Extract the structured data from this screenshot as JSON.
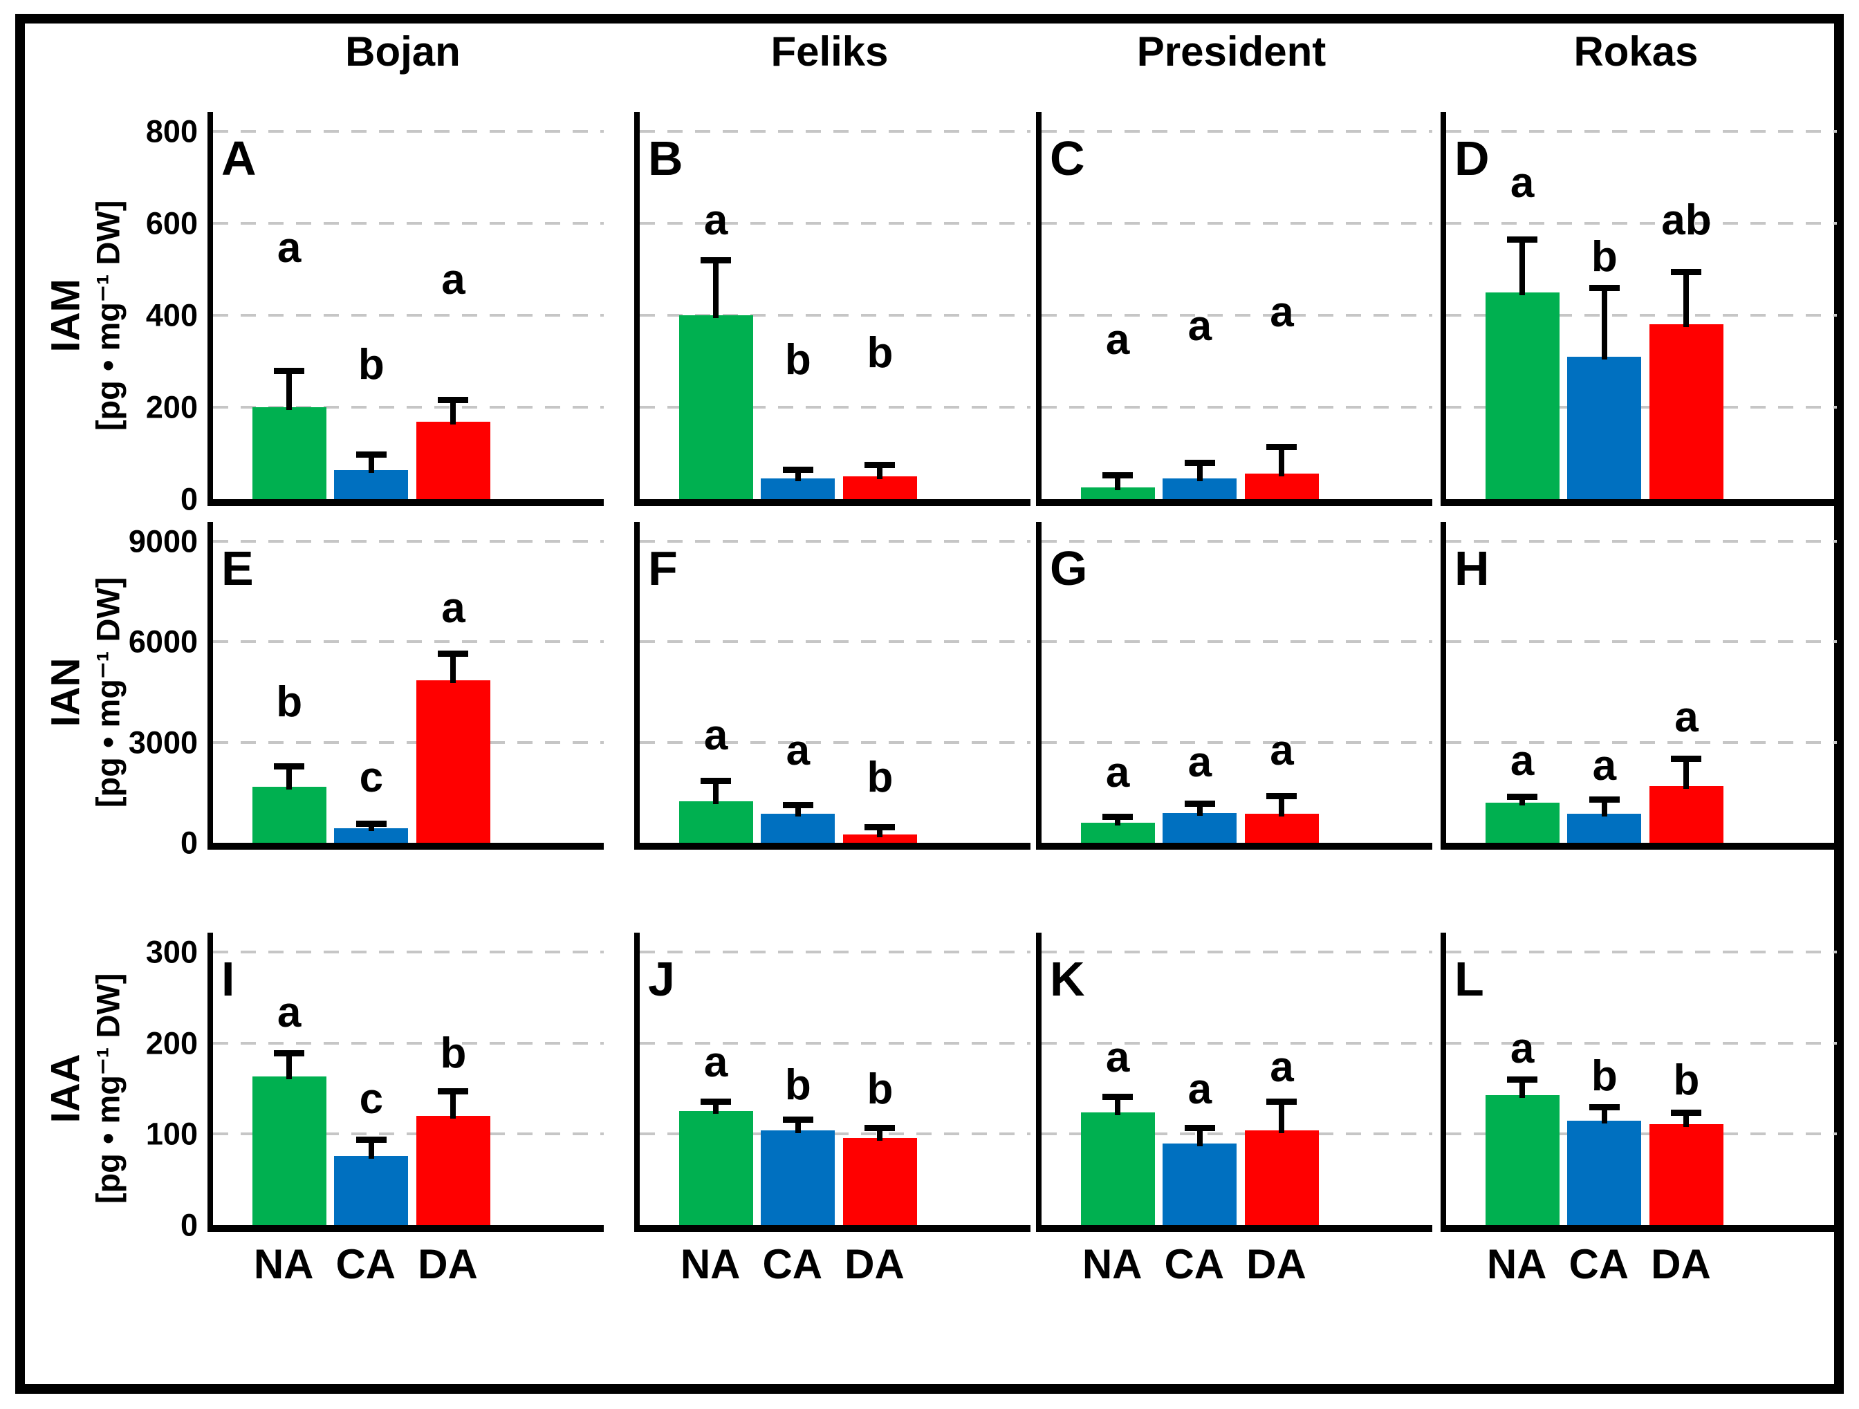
{
  "figure": {
    "column_titles": [
      "Bojan",
      "Feliks",
      "President",
      "Rokas"
    ],
    "rows": [
      {
        "label": "IAM",
        "units": "[pg • mg⁻¹ DW]"
      },
      {
        "label": "IAN",
        "units": "[pg • mg⁻¹ DW]"
      },
      {
        "label": "IAA",
        "units": "[pg • mg⁻¹ DW]"
      }
    ],
    "x_categories": [
      "NA",
      "CA",
      "DA"
    ],
    "series_colors": {
      "NA": "#00B050",
      "CA": "#0070C0",
      "DA": "#FF0000"
    },
    "gridline_color": "#c6c6c6",
    "axis_color": "#000000"
  },
  "chart_data": [
    {
      "panel": "A",
      "type": "bar",
      "row": "IAM",
      "column": "Bojan",
      "ylim": [
        0,
        800
      ],
      "yticks": [
        0,
        200,
        400,
        600,
        800
      ],
      "categories": [
        "NA",
        "CA",
        "DA"
      ],
      "values": [
        200,
        63,
        168
      ],
      "errors_up": [
        80,
        35,
        48
      ],
      "sig_letters": [
        "a",
        "b",
        "a"
      ],
      "letter_y": [
        500,
        245,
        430
      ]
    },
    {
      "panel": "B",
      "type": "bar",
      "row": "IAM",
      "column": "Feliks",
      "ylim": [
        0,
        800
      ],
      "yticks": [
        0,
        200,
        400,
        600,
        800
      ],
      "categories": [
        "NA",
        "CA",
        "DA"
      ],
      "values": [
        400,
        45,
        50
      ],
      "errors_up": [
        120,
        20,
        25
      ],
      "sig_letters": [
        "a",
        "b",
        "b"
      ],
      "letter_y": [
        560,
        255,
        270
      ]
    },
    {
      "panel": "C",
      "type": "bar",
      "row": "IAM",
      "column": "President",
      "ylim": [
        0,
        800
      ],
      "yticks": [
        0,
        200,
        400,
        600,
        800
      ],
      "categories": [
        "NA",
        "CA",
        "DA"
      ],
      "values": [
        25,
        45,
        55
      ],
      "errors_up": [
        28,
        35,
        60
      ],
      "sig_letters": [
        "a",
        "a",
        "a"
      ],
      "letter_y": [
        300,
        330,
        360
      ]
    },
    {
      "panel": "D",
      "type": "bar",
      "row": "IAM",
      "column": "Rokas",
      "ylim": [
        0,
        800
      ],
      "yticks": [
        0,
        200,
        400,
        600,
        800
      ],
      "categories": [
        "NA",
        "CA",
        "DA"
      ],
      "values": [
        450,
        310,
        380
      ],
      "errors_up": [
        115,
        150,
        115
      ],
      "sig_letters": [
        "a",
        "b",
        "ab"
      ],
      "letter_y": [
        640,
        480,
        560
      ]
    },
    {
      "panel": "E",
      "type": "bar",
      "row": "IAN",
      "column": "Bojan",
      "ylim": [
        0,
        9000
      ],
      "yticks": [
        0,
        3000,
        6000,
        9000
      ],
      "categories": [
        "NA",
        "CA",
        "DA"
      ],
      "values": [
        1670,
        430,
        4860
      ],
      "errors_up": [
        630,
        150,
        790
      ],
      "sig_letters": [
        "b",
        "c",
        "a"
      ],
      "letter_y": [
        3550,
        1300,
        6350
      ]
    },
    {
      "panel": "F",
      "type": "bar",
      "row": "IAN",
      "column": "Feliks",
      "ylim": [
        0,
        9000
      ],
      "yticks": [
        0,
        3000,
        6000,
        9000
      ],
      "categories": [
        "NA",
        "CA",
        "DA"
      ],
      "values": [
        1240,
        860,
        240
      ],
      "errors_up": [
        620,
        280,
        240
      ],
      "sig_letters": [
        "a",
        "a",
        "b"
      ],
      "letter_y": [
        2550,
        2100,
        1300
      ]
    },
    {
      "panel": "G",
      "type": "bar",
      "row": "IAN",
      "column": "President",
      "ylim": [
        0,
        9000
      ],
      "yticks": [
        0,
        3000,
        6000,
        9000
      ],
      "categories": [
        "NA",
        "CA",
        "DA"
      ],
      "values": [
        600,
        890,
        870
      ],
      "errors_up": [
        180,
        280,
        540
      ],
      "sig_letters": [
        "a",
        "a",
        "a"
      ],
      "letter_y": [
        1450,
        1750,
        2100
      ]
    },
    {
      "panel": "H",
      "type": "bar",
      "row": "IAN",
      "column": "Rokas",
      "ylim": [
        0,
        9000
      ],
      "yticks": [
        0,
        3000,
        6000,
        9000
      ],
      "categories": [
        "NA",
        "CA",
        "DA"
      ],
      "values": [
        1190,
        860,
        1700
      ],
      "errors_up": [
        190,
        450,
        810
      ],
      "sig_letters": [
        "a",
        "a",
        "a"
      ],
      "letter_y": [
        1800,
        1650,
        3100
      ]
    },
    {
      "panel": "I",
      "type": "bar",
      "row": "IAA",
      "column": "Bojan",
      "ylim": [
        0,
        300
      ],
      "yticks": [
        0,
        100,
        200,
        300
      ],
      "categories": [
        "NA",
        "CA",
        "DA"
      ],
      "values": [
        163,
        76,
        120
      ],
      "errors_up": [
        26,
        18,
        27
      ],
      "sig_letters": [
        "a",
        "c",
        "b"
      ],
      "letter_y": [
        210,
        115,
        165
      ]
    },
    {
      "panel": "J",
      "type": "bar",
      "row": "IAA",
      "column": "Feliks",
      "ylim": [
        0,
        300
      ],
      "yticks": [
        0,
        100,
        200,
        300
      ],
      "categories": [
        "NA",
        "CA",
        "DA"
      ],
      "values": [
        125,
        104,
        96
      ],
      "errors_up": [
        11,
        12,
        11
      ],
      "sig_letters": [
        "a",
        "b",
        "b"
      ],
      "letter_y": [
        155,
        130,
        125
      ]
    },
    {
      "panel": "K",
      "type": "bar",
      "row": "IAA",
      "column": "President",
      "ylim": [
        0,
        300
      ],
      "yticks": [
        0,
        100,
        200,
        300
      ],
      "categories": [
        "NA",
        "CA",
        "DA"
      ],
      "values": [
        124,
        90,
        104
      ],
      "errors_up": [
        17,
        17,
        32
      ],
      "sig_letters": [
        "a",
        "a",
        "a"
      ],
      "letter_y": [
        160,
        125,
        150
      ]
    },
    {
      "panel": "L",
      "type": "bar",
      "row": "IAA",
      "column": "Rokas",
      "ylim": [
        0,
        300
      ],
      "yticks": [
        0,
        100,
        200,
        300
      ],
      "categories": [
        "NA",
        "CA",
        "DA"
      ],
      "values": [
        143,
        115,
        111
      ],
      "errors_up": [
        17,
        15,
        13
      ],
      "sig_letters": [
        "a",
        "b",
        "b"
      ],
      "letter_y": [
        170,
        140,
        135
      ]
    }
  ]
}
